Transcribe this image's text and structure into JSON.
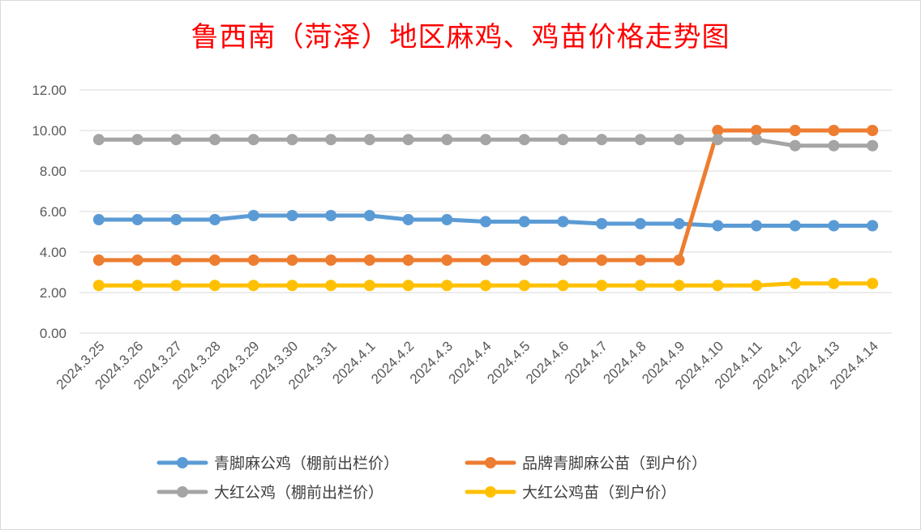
{
  "chart_data": {
    "type": "line",
    "title": "鲁西南（菏泽）地区麻鸡、鸡苗价格走势图",
    "categories": [
      "2024.3.25",
      "2024.3.26",
      "2024.3.27",
      "2024.3.28",
      "2024.3.29",
      "2024.3.30",
      "2024.3.31",
      "2024.4.1",
      "2024.4.2",
      "2024.4.3",
      "2024.4.4",
      "2024.4.5",
      "2024.4.6",
      "2024.4.7",
      "2024.4.8",
      "2024.4.9",
      "2024.4.10",
      "2024.4.11",
      "2024.4.12",
      "2024.4.13",
      "2024.4.14"
    ],
    "ylim": [
      0,
      12
    ],
    "yticks": [
      "0.00",
      "2.00",
      "4.00",
      "6.00",
      "8.00",
      "10.00",
      "12.00"
    ],
    "grid": true,
    "legend_position": "bottom",
    "series": [
      {
        "name": "青脚麻公鸡（棚前出栏价）",
        "color": "#5b9bd5",
        "values": [
          5.6,
          5.6,
          5.6,
          5.6,
          5.8,
          5.8,
          5.8,
          5.8,
          5.6,
          5.6,
          5.5,
          5.5,
          5.5,
          5.4,
          5.4,
          5.4,
          5.3,
          5.3,
          5.3,
          5.3,
          5.3
        ]
      },
      {
        "name": "品牌青脚麻公苗（到户价）",
        "color": "#ed7d31",
        "values": [
          3.6,
          3.6,
          3.6,
          3.6,
          3.6,
          3.6,
          3.6,
          3.6,
          3.6,
          3.6,
          3.6,
          3.6,
          3.6,
          3.6,
          3.6,
          3.6,
          10.0,
          10.0,
          10.0,
          10.0,
          10.0
        ]
      },
      {
        "name": "大红公鸡（棚前出栏价）",
        "color": "#a5a5a5",
        "values": [
          9.55,
          9.55,
          9.55,
          9.55,
          9.55,
          9.55,
          9.55,
          9.55,
          9.55,
          9.55,
          9.55,
          9.55,
          9.55,
          9.55,
          9.55,
          9.55,
          9.55,
          9.55,
          9.25,
          9.25,
          9.25
        ]
      },
      {
        "name": "大红公鸡苗（到户价）",
        "color": "#ffc000",
        "values": [
          2.35,
          2.35,
          2.35,
          2.35,
          2.35,
          2.35,
          2.35,
          2.35,
          2.35,
          2.35,
          2.35,
          2.35,
          2.35,
          2.35,
          2.35,
          2.35,
          2.35,
          2.35,
          2.45,
          2.45,
          2.45
        ]
      }
    ]
  }
}
